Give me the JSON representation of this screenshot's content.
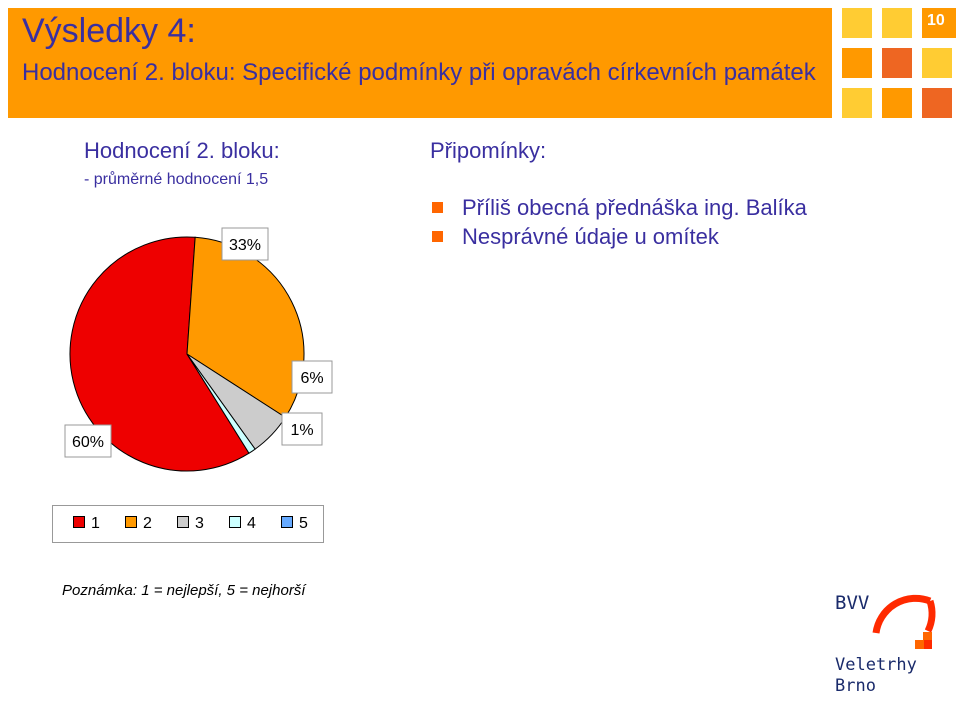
{
  "slide": {
    "title": "Výsledky 4:",
    "subtitle": "Hodnocení 2. bloku: Specifické podmínky při opravách církevních památek",
    "number": "10",
    "colors": {
      "header": "#ff9900",
      "text": "#3a2fa0",
      "bullet": "#ff6600"
    }
  },
  "left": {
    "title": "Hodnocení 2. bloku:",
    "subtitle": "- průměrné hodnocení 1,5"
  },
  "comments": {
    "title": "Připomínky:",
    "items": [
      "Příliš obecná přednáška ing. Balíka",
      "Nesprávné údaje u omítek"
    ]
  },
  "chart_data": {
    "type": "pie",
    "categories": [
      "1",
      "2",
      "3",
      "4",
      "5"
    ],
    "values": [
      60,
      33,
      6,
      1,
      0
    ],
    "labels": [
      "60%",
      "33%",
      "6%",
      "1%"
    ],
    "colors": [
      "#ee0000",
      "#ff9900",
      "#cccccc",
      "#ccffff",
      "#66aaff"
    ],
    "legend_position": "bottom"
  },
  "note": "Poznámka: 1 = nejlepší, 5 = nejhorší",
  "logo": {
    "line1": "BVV",
    "line2": "Veletrhy",
    "line3": "Brno"
  }
}
